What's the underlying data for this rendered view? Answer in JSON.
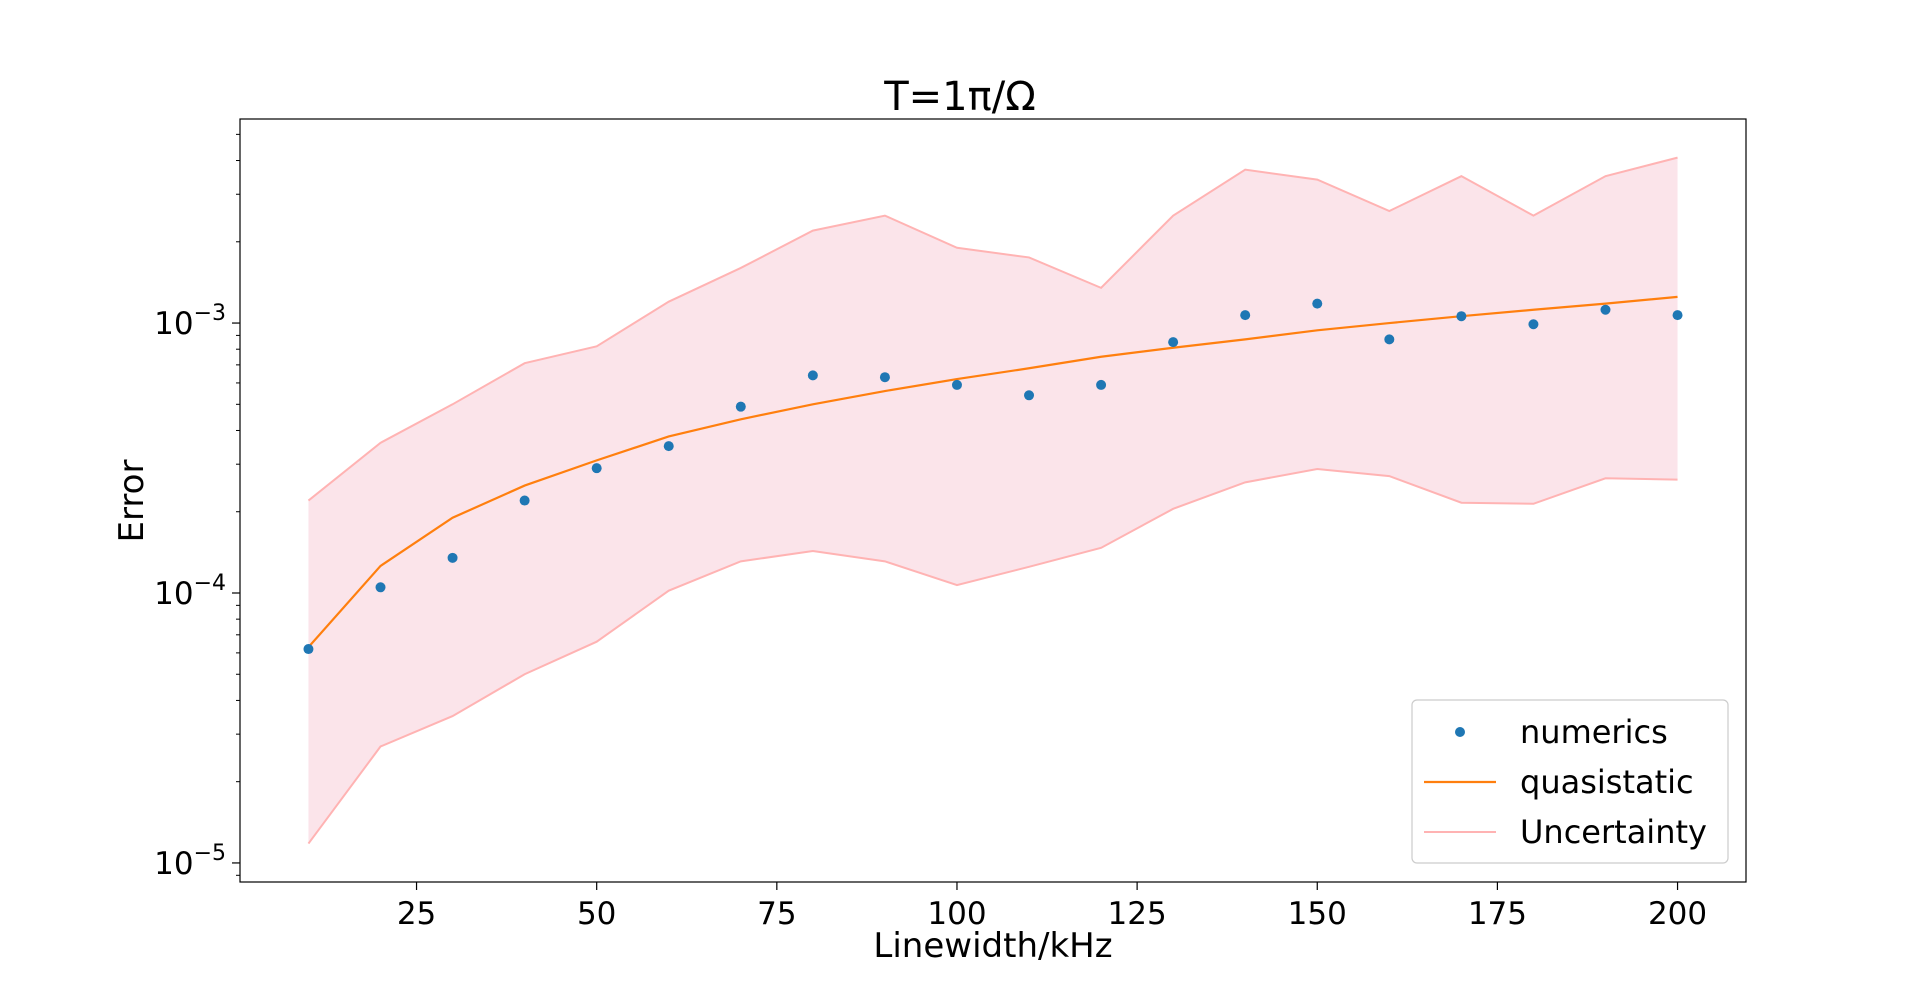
{
  "chart_data": {
    "type": "scatter",
    "title": "T=1π/Ω",
    "xlabel": "Linewidth/kHz",
    "ylabel": "Error",
    "x_scale": "linear",
    "y_scale": "log",
    "xlim": [
      0.5,
      209.5
    ],
    "ylim": [
      8.5e-06,
      0.0057
    ],
    "x_ticks": [
      {
        "value": 25,
        "label": "25"
      },
      {
        "value": 50,
        "label": "50"
      },
      {
        "value": 75,
        "label": "75"
      },
      {
        "value": 100,
        "label": "100"
      },
      {
        "value": 125,
        "label": "125"
      },
      {
        "value": 150,
        "label": "150"
      },
      {
        "value": 175,
        "label": "175"
      },
      {
        "value": 200,
        "label": "200"
      }
    ],
    "y_ticks": [
      {
        "value": 1e-05,
        "base": "10",
        "exp": "−5"
      },
      {
        "value": 0.0001,
        "base": "10",
        "exp": "−4"
      },
      {
        "value": 0.001,
        "base": "10",
        "exp": "−3"
      }
    ],
    "grid": false,
    "legend_position": "lower-right",
    "x": [
      10,
      20,
      30,
      40,
      50,
      60,
      70,
      80,
      90,
      100,
      110,
      120,
      130,
      140,
      150,
      160,
      170,
      180,
      190,
      200
    ],
    "series": [
      {
        "name": "numerics",
        "type": "scatter",
        "color": "#1f77b4",
        "values": [
          6.2e-05,
          0.000105,
          0.000135,
          0.00022,
          0.00029,
          0.00035,
          0.00049,
          0.00064,
          0.00063,
          0.00059,
          0.00054,
          0.00059,
          0.00085,
          0.00107,
          0.00118,
          0.00087,
          0.00106,
          0.00099,
          0.00112,
          0.00107
        ]
      },
      {
        "name": "quasistatic",
        "type": "line",
        "color": "#ff7f0e",
        "values": [
          6.3e-05,
          0.000126,
          0.00019,
          0.00025,
          0.00031,
          0.00038,
          0.00044,
          0.0005,
          0.00056,
          0.00062,
          0.00068,
          0.00075,
          0.00081,
          0.00087,
          0.00094,
          0.001,
          0.00106,
          0.00112,
          0.00118,
          0.00125
        ]
      },
      {
        "name": "Uncertainty",
        "type": "band",
        "line_color": "#ffb3b3",
        "fill_color": "#fbe4ea",
        "upper": [
          0.00022,
          0.00036,
          0.0005,
          0.00071,
          0.00082,
          0.0012,
          0.0016,
          0.0022,
          0.0025,
          0.0019,
          0.00175,
          0.00135,
          0.0025,
          0.0037,
          0.0034,
          0.0026,
          0.0035,
          0.0025,
          0.0035,
          0.0041
        ],
        "lower": [
          1.18e-05,
          2.7e-05,
          3.5e-05,
          5e-05,
          6.6e-05,
          0.000102,
          0.000131,
          0.000143,
          0.000131,
          0.000107,
          0.000125,
          0.000147,
          0.000205,
          0.000257,
          0.000288,
          0.000271,
          0.000216,
          0.000214,
          0.000266,
          0.000263
        ]
      }
    ]
  }
}
